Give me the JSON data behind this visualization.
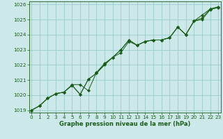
{
  "title": "Graphe pression niveau de la mer (hPa)",
  "background_color": "#cce8e8",
  "grid_color": "#99cccc",
  "line_color": "#1a5c1a",
  "marker_color": "#1a5c1a",
  "xlim": [
    -0.3,
    23.3
  ],
  "ylim": [
    1018.85,
    1026.2
  ],
  "yticks": [
    1019,
    1020,
    1021,
    1022,
    1023,
    1024,
    1025,
    1026
  ],
  "xticks": [
    0,
    1,
    2,
    3,
    4,
    5,
    6,
    7,
    8,
    9,
    10,
    11,
    12,
    13,
    14,
    15,
    16,
    17,
    18,
    19,
    20,
    21,
    22,
    23
  ],
  "series1": [
    1019.0,
    1019.3,
    1019.8,
    1020.1,
    1020.2,
    1020.7,
    1020.7,
    1020.3,
    1021.5,
    1022.1,
    1022.5,
    1022.8,
    1023.55,
    1023.3,
    1023.55,
    1023.65,
    1023.65,
    1023.8,
    1024.5,
    1024.0,
    1024.9,
    1025.3,
    1025.7,
    1025.8
  ],
  "series2": [
    1019.0,
    1019.3,
    1019.8,
    1020.1,
    1020.2,
    1020.65,
    1020.05,
    1021.05,
    1021.45,
    1022.0,
    1022.5,
    1023.0,
    1023.65,
    1023.3,
    1023.55,
    1023.65,
    1023.65,
    1023.8,
    1024.5,
    1024.0,
    1024.9,
    1025.0,
    1025.65,
    1025.8
  ],
  "series3": [
    1019.0,
    1019.3,
    1019.8,
    1020.1,
    1020.2,
    1020.65,
    1020.05,
    1021.05,
    1021.45,
    1022.05,
    1022.5,
    1023.0,
    1023.65,
    1023.3,
    1023.55,
    1023.65,
    1023.65,
    1023.8,
    1024.5,
    1024.0,
    1024.9,
    1025.1,
    1025.7,
    1025.85
  ],
  "title_fontsize": 6.0,
  "tick_fontsize": 5.2,
  "linewidth": 0.7,
  "markersize": 2.2
}
